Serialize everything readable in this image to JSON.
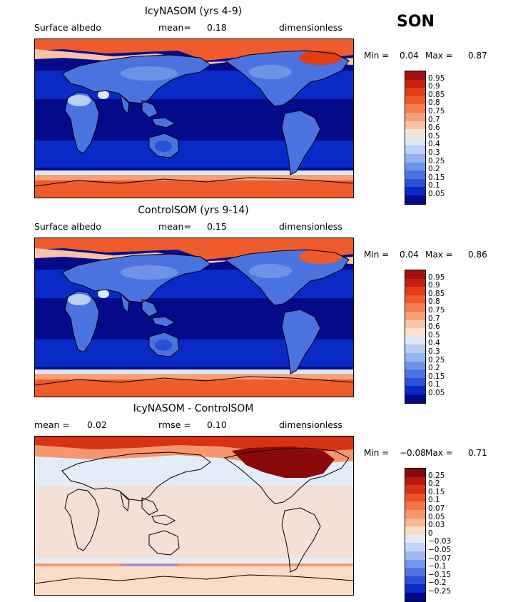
{
  "season": "SON",
  "panels": [
    {
      "title": "IcyNASOM (yrs 4-9)",
      "left_label": "Surface albedo",
      "mid_label": "mean=",
      "mid_value": "0.18",
      "right_label": "dimensionless",
      "min_label": "Min =",
      "min_value": "0.04",
      "max_label": "Max =",
      "max_value": "0.87",
      "colorbar": {
        "labels": [
          "0.95",
          "0.9",
          "0.85",
          "0.8",
          "0.75",
          "0.7",
          "0.6",
          "0.5",
          "0.4",
          "0.3",
          "0.25",
          "0.2",
          "0.15",
          "0.1",
          "0.05"
        ],
        "colors": [
          "#a50f0f",
          "#c8200e",
          "#e33c14",
          "#f05a2a",
          "#f47c50",
          "#f6a07a",
          "#f8c3a6",
          "#fae3d2",
          "#dce9f8",
          "#b9cff3",
          "#93b3ec",
          "#6e93e6",
          "#4b73e0",
          "#2a4fd8",
          "#0a2ac8",
          "#040a8a"
        ]
      }
    },
    {
      "title": "ControlSOM (yrs 9-14)",
      "left_label": "Surface albedo",
      "mid_label": "mean=",
      "mid_value": "0.15",
      "right_label": "dimensionless",
      "min_label": "Min =",
      "min_value": "0.04",
      "max_label": "Max =",
      "max_value": "0.86",
      "colorbar": {
        "labels": [
          "0.95",
          "0.9",
          "0.85",
          "0.8",
          "0.75",
          "0.7",
          "0.6",
          "0.5",
          "0.4",
          "0.3",
          "0.25",
          "0.2",
          "0.15",
          "0.1",
          "0.05"
        ],
        "colors": [
          "#a50f0f",
          "#c8200e",
          "#e33c14",
          "#f05a2a",
          "#f47c50",
          "#f6a07a",
          "#f8c3a6",
          "#fae3d2",
          "#dce9f8",
          "#b9cff3",
          "#93b3ec",
          "#6e93e6",
          "#4b73e0",
          "#2a4fd8",
          "#0a2ac8",
          "#040a8a"
        ]
      }
    },
    {
      "title": "IcyNASOM - ControlSOM",
      "left_label": "mean =",
      "left_value": "0.02",
      "mid_label": "rmse =",
      "mid_value": "0.10",
      "right_label": "dimensionless",
      "min_label": "Min =",
      "min_value": "−0.08",
      "max_label": "Max =",
      "max_value": "0.71",
      "colorbar": {
        "labels": [
          "0.25",
          "0.2",
          "0.15",
          "0.1",
          "0.07",
          "0.05",
          "0.03",
          "0",
          "−0.03",
          "−0.05",
          "−0.07",
          "−0.1",
          "−0.15",
          "−0.2",
          "−0.25"
        ],
        "colors": [
          "#8a0a0a",
          "#b8180f",
          "#d83214",
          "#ec5226",
          "#f27446",
          "#f5966c",
          "#f8b898",
          "#fbdcc6",
          "#e4ecf8",
          "#c2d4f4",
          "#9cb8ee",
          "#7697e8",
          "#4f74e0",
          "#2b4fd6",
          "#0c2ac4",
          "#03078a"
        ]
      }
    }
  ]
}
